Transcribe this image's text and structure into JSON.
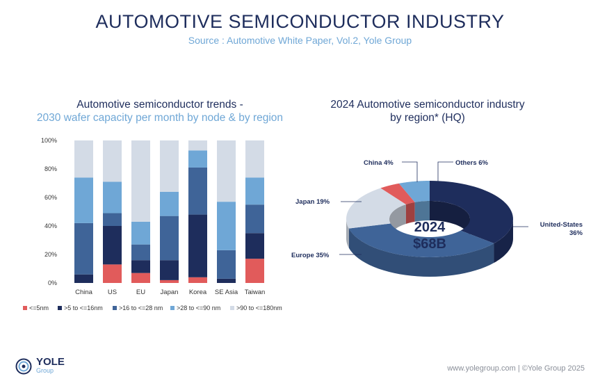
{
  "header": {
    "title": "AUTOMOTIVE SEMICONDUCTOR INDUSTRY",
    "subtitle": "Source : Automotive White Paper, Vol.2, Yole Group"
  },
  "left_panel": {
    "title_line1": "Automotive semiconductor trends -",
    "title_line2": "2030 wafer capacity per month by node & by region"
  },
  "right_panel": {
    "title_line1": "2024 Automotive semiconductor industry",
    "title_line2": "by region* (HQ)"
  },
  "chart_data": [
    {
      "type": "bar",
      "stacked": true,
      "title": "Automotive semiconductor trends - 2030 wafer capacity per month by node & by region",
      "categories": [
        "China",
        "US",
        "EU",
        "Japan",
        "Korea",
        "SE Asia",
        "Taiwan"
      ],
      "ylim": [
        0,
        100
      ],
      "yticks": [
        "0%",
        "20%",
        "40%",
        "60%",
        "80%",
        "100%"
      ],
      "grid": false,
      "legend_position": "bottom",
      "series": [
        {
          "name": "<=5nm",
          "color": "#e15b5b",
          "values": [
            0,
            13,
            7,
            2,
            4,
            0,
            17
          ]
        },
        {
          "name": ">5 to <=16nm",
          "color": "#1e2d5c",
          "values": [
            6,
            27,
            9,
            14,
            44,
            3,
            18
          ]
        },
        {
          "name": ">16 to <=28 nm",
          "color": "#3f6498",
          "values": [
            36,
            9,
            11,
            31,
            33,
            20,
            20
          ]
        },
        {
          "name": ">28 to <=90 nm",
          "color": "#6fa7d6",
          "values": [
            32,
            22,
            16,
            17,
            12,
            34,
            19
          ]
        },
        {
          "name": ">90 to <=180nm",
          "color": "#d3dbe6",
          "values": [
            26,
            29,
            57,
            36,
            7,
            43,
            26
          ]
        }
      ]
    },
    {
      "type": "pie",
      "donut": true,
      "title": "2024 Automotive semiconductor industry by region* (HQ)",
      "center_label_line1": "2024",
      "center_label_line2": "$68B",
      "slices": [
        {
          "label": "United-States",
          "value": 36,
          "display": "United-States 36%",
          "color": "#1e2d5c"
        },
        {
          "label": "Europe",
          "value": 35,
          "display": "Europe 35%",
          "color": "#3f6498"
        },
        {
          "label": "Japan",
          "value": 19,
          "display": "Japan 19%",
          "color": "#d3dbe6"
        },
        {
          "label": "China",
          "value": 4,
          "display": "China 4%",
          "color": "#e15b5b"
        },
        {
          "label": "Others",
          "value": 6,
          "display": "Others 6%",
          "color": "#6fa7d6"
        }
      ]
    }
  ],
  "footer": {
    "logo_name": "YOLE",
    "logo_sub": "Group",
    "copyright": "www.yolegroup.com | ©Yole Group 2025"
  }
}
